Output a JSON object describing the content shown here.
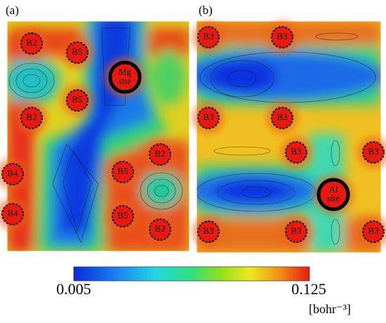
{
  "panels": [
    {
      "label": "(a)",
      "sites": [
        [
          "B2"
        ],
        [
          "B5"
        ],
        [
          "Mg",
          "site"
        ],
        [
          "B5"
        ],
        [
          "B2"
        ],
        [
          "B2"
        ],
        [
          "B5"
        ],
        [
          "B4"
        ],
        [
          "B4"
        ],
        [
          "B5"
        ],
        [
          "B2"
        ]
      ]
    },
    {
      "label": "(b)",
      "sites": [
        [
          "B3"
        ],
        [
          "B3"
        ],
        [
          "B3"
        ],
        [
          "B3"
        ],
        [
          "B3"
        ],
        [
          "B3"
        ],
        [
          "B3"
        ],
        [
          "B3"
        ],
        [
          "B3"
        ],
        [
          "Al",
          "site"
        ]
      ]
    }
  ],
  "colorbar": {
    "min_label": "0.005",
    "max_label": "0.125",
    "unit": "[bohr⁻³]"
  }
}
